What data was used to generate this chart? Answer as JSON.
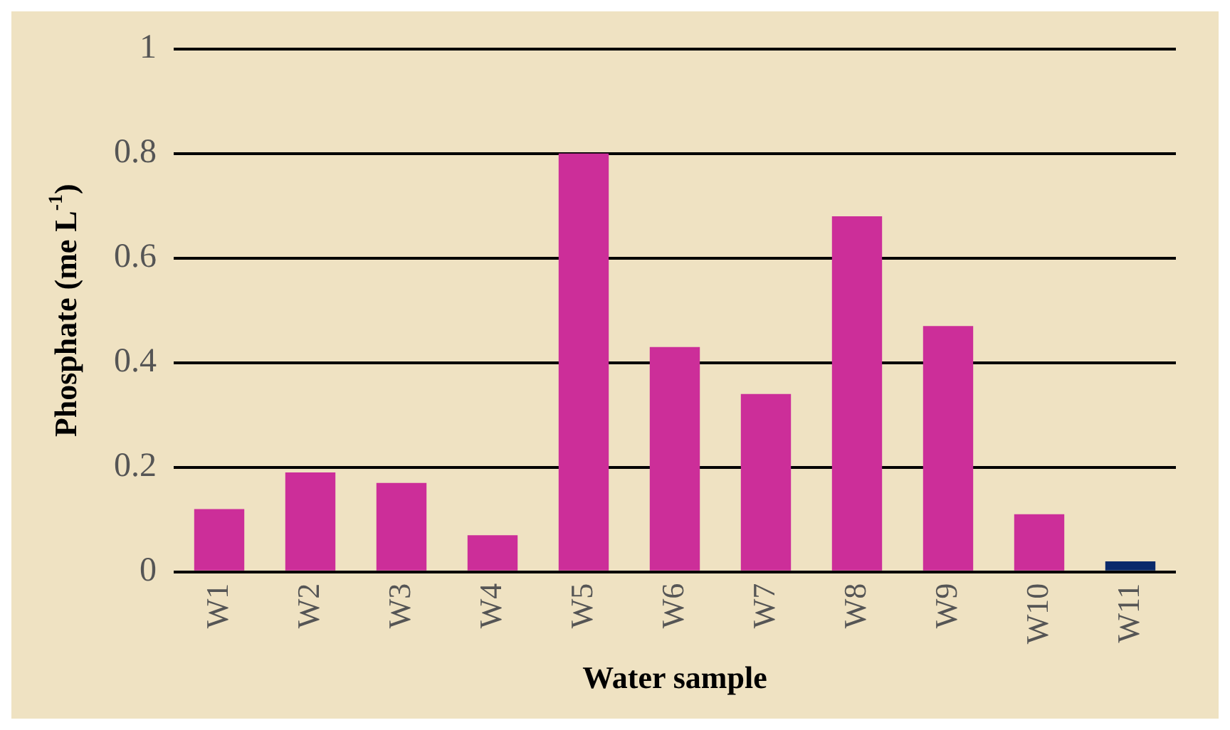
{
  "chart_data": {
    "type": "bar",
    "xlabel": "Water sample",
    "ylabel": "Phosphate (me L$^{-1}$)",
    "categories": [
      "W1",
      "W2",
      "W3",
      "W4",
      "W5",
      "W6",
      "W7",
      "W8",
      "W9",
      "W10",
      "W11"
    ],
    "values": [
      0.12,
      0.19,
      0.17,
      0.07,
      0.8,
      0.43,
      0.34,
      0.68,
      0.47,
      0.11,
      0.02
    ],
    "colors": [
      "#cc2e99",
      "#cc2e99",
      "#cc2e99",
      "#cc2e99",
      "#cc2e99",
      "#cc2e99",
      "#cc2e99",
      "#cc2e99",
      "#cc2e99",
      "#cc2e99",
      "#0a2a6b"
    ],
    "ylim": [
      0,
      1
    ],
    "yticks": [
      0,
      0.2,
      0.4,
      0.6,
      0.8,
      1
    ],
    "grid": "y",
    "legend": false
  }
}
